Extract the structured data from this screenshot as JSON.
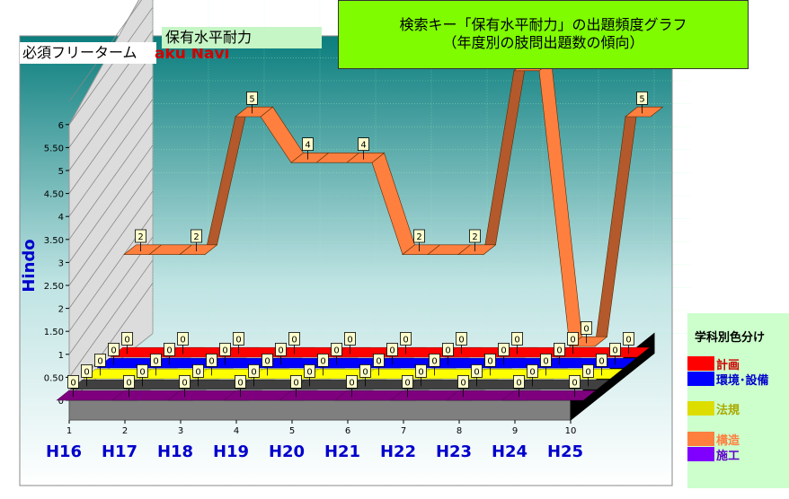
{
  "header": {
    "keyword": "保有水平耐力",
    "title_line1": "検索キー「保有水平耐力」の出題頻度グラフ",
    "title_line2": "（年度別の肢問出題数の傾向）",
    "required_label": "必須フリーターム",
    "logo_text": "aku Navi"
  },
  "chart_data": {
    "type": "line",
    "ylabel": "Hindo",
    "ylim": [
      0,
      6
    ],
    "yticks": [
      "0",
      "0.50",
      "1",
      "1.50",
      "2",
      "2.50",
      "3",
      "3.50",
      "4",
      "4.50",
      "5",
      "5.50",
      "6"
    ],
    "x_index": [
      "1",
      "2",
      "3",
      "4",
      "5",
      "6",
      "7",
      "8",
      "9",
      "10"
    ],
    "categories": [
      "H16",
      "H17",
      "H18",
      "H19",
      "H20",
      "H21",
      "H22",
      "H23",
      "H24",
      "H25"
    ],
    "series": [
      {
        "name": "施工",
        "color": "#7f007f",
        "values": [
          0,
          0,
          0,
          0,
          0,
          0,
          0,
          0,
          0,
          0
        ]
      },
      {
        "name": "",
        "color": "#404040",
        "values": [
          0,
          0,
          0,
          0,
          0,
          0,
          0,
          0,
          0,
          0
        ]
      },
      {
        "name": "法規",
        "color": "#ffff00",
        "values": [
          0,
          0,
          0,
          0,
          0,
          0,
          0,
          0,
          0,
          0
        ]
      },
      {
        "name": "環境･設備",
        "color": "#0000ff",
        "values": [
          0,
          0,
          0,
          0,
          0,
          0,
          0,
          0,
          0,
          0
        ]
      },
      {
        "name": "計画",
        "color": "#ff0000",
        "values": [
          0,
          0,
          0,
          0,
          0,
          0,
          0,
          0,
          0,
          0
        ]
      },
      {
        "name": "構造",
        "color": "#ff7f3f",
        "values": [
          2,
          2,
          5,
          4,
          4,
          2,
          2,
          6,
          0,
          5
        ]
      }
    ]
  },
  "legend": {
    "title": "学科別色分け",
    "items": [
      {
        "label": "計画",
        "color": "#ff0000",
        "text_color": "#cc0000"
      },
      {
        "label": "環境･設備",
        "color": "#0000ff",
        "text_color": "#0000cc"
      },
      {
        "label": "法規",
        "color": "#dddd00",
        "text_color": "#aaaa00"
      },
      {
        "label": "構造",
        "color": "#ff7f3f",
        "text_color": "#ff7f3f"
      },
      {
        "label": "施工",
        "color": "#8000ff",
        "text_color": "#6000cc"
      }
    ]
  }
}
